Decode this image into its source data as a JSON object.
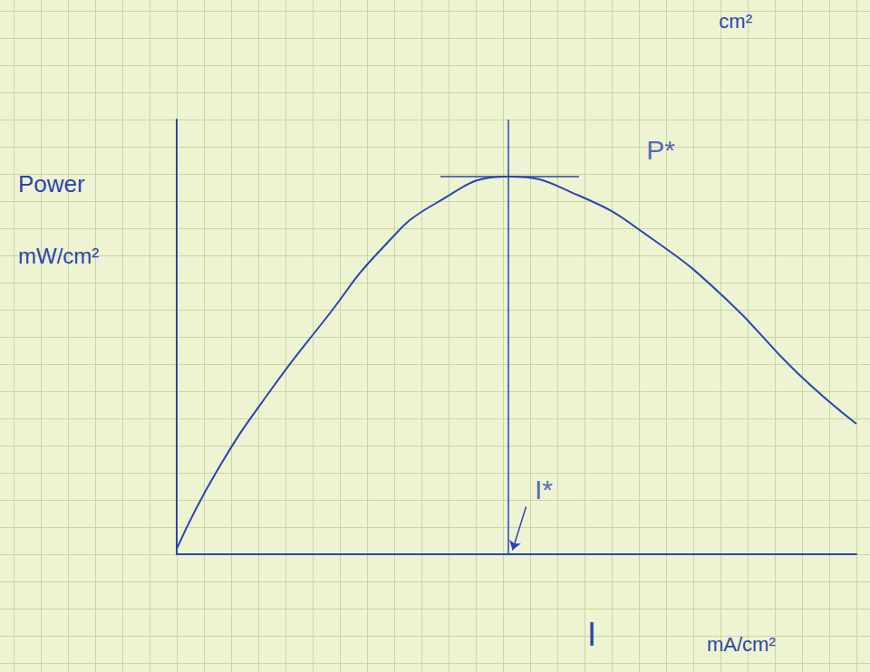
{
  "chart_data": {
    "type": "line",
    "subtitle": "cm²",
    "xlabel": "I mA/cm²",
    "ylabel": "Power mW/cm²",
    "x": [
      0,
      1.5,
      3.5,
      5.5,
      7.5,
      9.5,
      12.2,
      14.8,
      17.5,
      20.2,
      22.8,
      25
    ],
    "values": [
      0.2,
      3.1,
      6.1,
      8.7,
      11.2,
      12.9,
      13.9,
      13.2,
      11.6,
      9.4,
      6.7,
      4.8
    ],
    "color": "#2a45b0",
    "xlim": [
      0,
      25
    ],
    "ylim": [
      0,
      16
    ],
    "tick_labels": false,
    "peak": {
      "x": 12.2,
      "y": 13.9
    },
    "annotations": [
      {
        "text": "P*",
        "x": 17.8,
        "y": 14.9
      },
      {
        "text": "I*",
        "x": 13.5,
        "y": 2.4
      }
    ]
  }
}
